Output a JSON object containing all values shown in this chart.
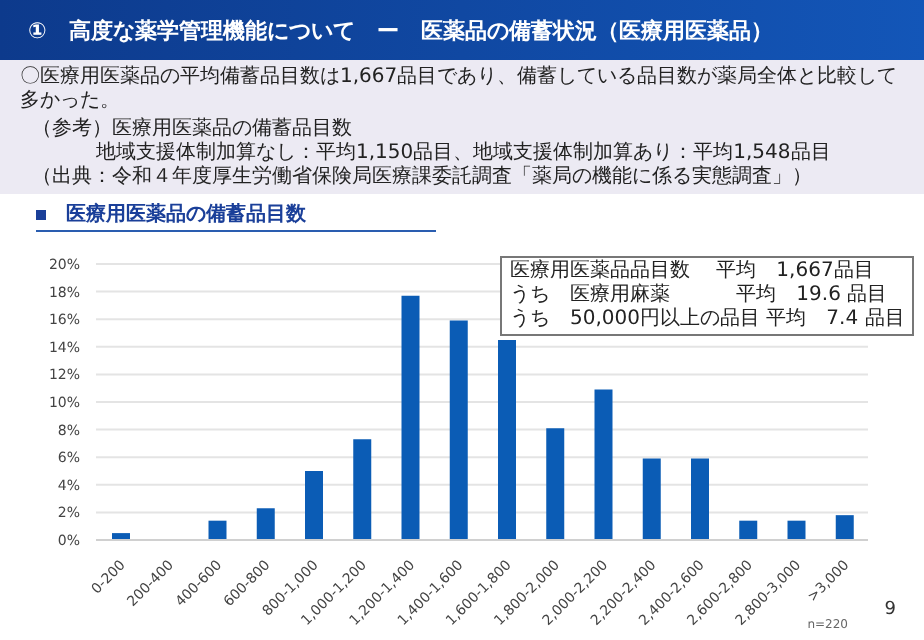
{
  "chart_data": {
    "type": "bar",
    "title": "①　高度な薬学管理機能について　ー　医薬品の備蓄状況（医療用医薬品）",
    "subtitle": "医療用医薬品の備蓄品目数",
    "categories": [
      "0-200",
      "200-400",
      "400-600",
      "600-800",
      "800-1,000",
      "1,000-1,200",
      "1,200-1,400",
      "1,400-1,600",
      "1,600-1,800",
      "1,800-2,000",
      "2,000-2,200",
      "2,200-2,400",
      "2,400-2,600",
      "2,600-2,800",
      "2,800-3,000",
      ">3,000"
    ],
    "values": [
      0.5,
      0,
      1.4,
      2.3,
      5.0,
      7.3,
      17.7,
      15.9,
      14.5,
      8.1,
      10.9,
      5.9,
      5.9,
      1.4,
      1.4,
      1.8
    ],
    "color": "#0b5cb5",
    "ylim": [
      0,
      20
    ],
    "yticks": [
      {
        "value": 0,
        "label": "0%"
      },
      {
        "value": 2,
        "label": "2%"
      },
      {
        "value": 4,
        "label": "4%"
      },
      {
        "value": 6,
        "label": "6%"
      },
      {
        "value": 8,
        "label": "8%"
      },
      {
        "value": 10,
        "label": "10%"
      },
      {
        "value": 12,
        "label": "12%"
      },
      {
        "value": 14,
        "label": "14%"
      },
      {
        "value": 16,
        "label": "16%"
      },
      {
        "value": 18,
        "label": "18%"
      },
      {
        "value": 20,
        "label": "20%"
      }
    ],
    "grid": "y",
    "annotations": [
      "〇医療用医薬品の平均備蓄品目数は1,667品目であり、備蓄している品目数が薬局全体と比較して多かった。",
      "（参考）医療用医薬品の備蓄品目数",
      "地域支援体制加算なし：平均1,150品目、地域支援体制加算あり：平均1,548品目",
      "（出典：令和４年度厚生労働省保険局医療課委託調査「薬局の機能に係る実態調査」）",
      "医療用医薬品品目数　 平均　1,667品目",
      "うち　医療用麻薬　　　 平均　19.6 品目",
      "うち　50,000円以上の品目 平均　7.4 品目",
      "n=220",
      "9"
    ]
  }
}
